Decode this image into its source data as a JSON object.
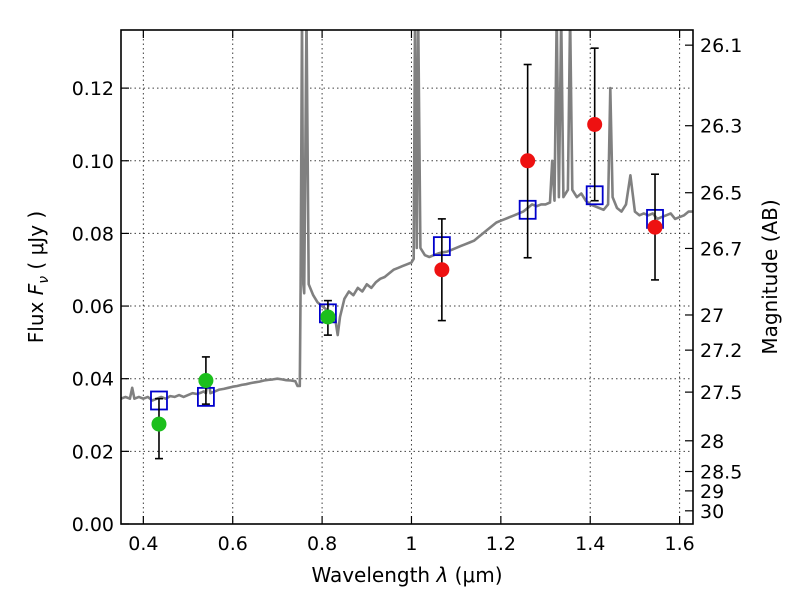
{
  "chart_data": {
    "type": "scatter",
    "xlabel": "Wavelength",
    "xlabel_symbol": "λ",
    "xlabel_unit": "μm",
    "ylabel": "Flux",
    "ylabel_symbol": "F",
    "ylabel_subscript": "ν",
    "ylabel_unit": "μJy",
    "ylabel_right": "Magnitude (AB)",
    "xlim": [
      0.35,
      1.63
    ],
    "ylim": [
      0.0,
      0.136
    ],
    "grid": true,
    "x_ticks": [
      {
        "value": 0.4,
        "label": "0.4"
      },
      {
        "value": 0.6,
        "label": "0.6"
      },
      {
        "value": 0.8,
        "label": "0.8"
      },
      {
        "value": 1.0,
        "label": "1"
      },
      {
        "value": 1.2,
        "label": "1.2"
      },
      {
        "value": 1.4,
        "label": "1.4"
      },
      {
        "value": 1.6,
        "label": "1.6"
      }
    ],
    "y_ticks": [
      {
        "value": 0.0,
        "label": "0.00"
      },
      {
        "value": 0.02,
        "label": "0.02"
      },
      {
        "value": 0.04,
        "label": "0.04"
      },
      {
        "value": 0.06,
        "label": "0.06"
      },
      {
        "value": 0.08,
        "label": "0.08"
      },
      {
        "value": 0.1,
        "label": "0.10"
      },
      {
        "value": 0.12,
        "label": "0.12"
      }
    ],
    "magnitude_ticks": [
      {
        "mag": 26.1,
        "label": "26.1"
      },
      {
        "mag": 26.3,
        "label": "26.3"
      },
      {
        "mag": 26.5,
        "label": "26.5"
      },
      {
        "mag": 26.7,
        "label": "26.7"
      },
      {
        "mag": 27.0,
        "label": "27"
      },
      {
        "mag": 27.2,
        "label": "27.2"
      },
      {
        "mag": 27.5,
        "label": "27.5"
      },
      {
        "mag": 28.0,
        "label": "28"
      },
      {
        "mag": 28.5,
        "label": "28.5"
      },
      {
        "mag": 29.0,
        "label": "29"
      },
      {
        "mag": 30.0,
        "label": "30"
      }
    ],
    "colors": {
      "spectrum": "#808080",
      "model_boxes": "#0000cc",
      "observed_green": "#1cbf1c",
      "observed_red": "#ee1111",
      "error_bars": "#000000"
    },
    "spectrum": [
      [
        0.35,
        0.0345
      ],
      [
        0.36,
        0.035
      ],
      [
        0.37,
        0.0345
      ],
      [
        0.375,
        0.0375
      ],
      [
        0.38,
        0.0345
      ],
      [
        0.39,
        0.035
      ],
      [
        0.4,
        0.0345
      ],
      [
        0.41,
        0.035
      ],
      [
        0.42,
        0.034
      ],
      [
        0.43,
        0.0345
      ],
      [
        0.44,
        0.035
      ],
      [
        0.45,
        0.0345
      ],
      [
        0.46,
        0.0352
      ],
      [
        0.47,
        0.035
      ],
      [
        0.48,
        0.0355
      ],
      [
        0.49,
        0.035
      ],
      [
        0.5,
        0.0355
      ],
      [
        0.51,
        0.036
      ],
      [
        0.52,
        0.0358
      ],
      [
        0.53,
        0.0362
      ],
      [
        0.535,
        0.0365
      ],
      [
        0.54,
        0.036
      ],
      [
        0.545,
        0.041
      ],
      [
        0.55,
        0.036
      ],
      [
        0.56,
        0.0365
      ],
      [
        0.57,
        0.037
      ],
      [
        0.58,
        0.0372
      ],
      [
        0.59,
        0.0375
      ],
      [
        0.6,
        0.0378
      ],
      [
        0.61,
        0.038
      ],
      [
        0.62,
        0.0383
      ],
      [
        0.63,
        0.0385
      ],
      [
        0.64,
        0.0388
      ],
      [
        0.65,
        0.039
      ],
      [
        0.66,
        0.0392
      ],
      [
        0.67,
        0.0395
      ],
      [
        0.68,
        0.0397
      ],
      [
        0.69,
        0.0398
      ],
      [
        0.7,
        0.04
      ],
      [
        0.71,
        0.0398
      ],
      [
        0.72,
        0.0396
      ],
      [
        0.73,
        0.0395
      ],
      [
        0.74,
        0.0393
      ],
      [
        0.745,
        0.038
      ],
      [
        0.75,
        0.038
      ],
      [
        0.752,
        0.065
      ],
      [
        0.755,
        0.14
      ],
      [
        0.758,
        0.066
      ],
      [
        0.76,
        0.0635
      ],
      [
        0.765,
        0.14
      ],
      [
        0.77,
        0.066
      ],
      [
        0.78,
        0.063
      ],
      [
        0.79,
        0.061
      ],
      [
        0.8,
        0.06
      ],
      [
        0.81,
        0.059
      ],
      [
        0.82,
        0.058
      ],
      [
        0.83,
        0.056
      ],
      [
        0.835,
        0.052
      ],
      [
        0.84,
        0.057
      ],
      [
        0.85,
        0.062
      ],
      [
        0.86,
        0.064
      ],
      [
        0.87,
        0.063
      ],
      [
        0.88,
        0.065
      ],
      [
        0.89,
        0.064
      ],
      [
        0.9,
        0.066
      ],
      [
        0.91,
        0.065
      ],
      [
        0.92,
        0.0665
      ],
      [
        0.93,
        0.0675
      ],
      [
        0.94,
        0.068
      ],
      [
        0.95,
        0.069
      ],
      [
        0.96,
        0.07
      ],
      [
        0.97,
        0.0705
      ],
      [
        0.98,
        0.071
      ],
      [
        0.99,
        0.0715
      ],
      [
        1.0,
        0.072
      ],
      [
        1.005,
        0.073
      ],
      [
        1.008,
        0.14
      ],
      [
        1.012,
        0.076
      ],
      [
        1.015,
        0.14
      ],
      [
        1.02,
        0.076
      ],
      [
        1.03,
        0.074
      ],
      [
        1.04,
        0.0735
      ],
      [
        1.05,
        0.074
      ],
      [
        1.06,
        0.0745
      ],
      [
        1.07,
        0.0748
      ],
      [
        1.08,
        0.075
      ],
      [
        1.09,
        0.0755
      ],
      [
        1.1,
        0.076
      ],
      [
        1.11,
        0.0765
      ],
      [
        1.12,
        0.077
      ],
      [
        1.13,
        0.0775
      ],
      [
        1.14,
        0.078
      ],
      [
        1.15,
        0.079
      ],
      [
        1.16,
        0.08
      ],
      [
        1.17,
        0.081
      ],
      [
        1.18,
        0.082
      ],
      [
        1.19,
        0.083
      ],
      [
        1.2,
        0.0835
      ],
      [
        1.21,
        0.084
      ],
      [
        1.22,
        0.0845
      ],
      [
        1.23,
        0.085
      ],
      [
        1.24,
        0.0855
      ],
      [
        1.25,
        0.086
      ],
      [
        1.26,
        0.087
      ],
      [
        1.27,
        0.088
      ],
      [
        1.28,
        0.0875
      ],
      [
        1.29,
        0.088
      ],
      [
        1.3,
        0.088
      ],
      [
        1.31,
        0.0885
      ],
      [
        1.315,
        0.1
      ],
      [
        1.32,
        0.089
      ],
      [
        1.325,
        0.14
      ],
      [
        1.33,
        0.09
      ],
      [
        1.335,
        0.14
      ],
      [
        1.34,
        0.09
      ],
      [
        1.35,
        0.092
      ],
      [
        1.355,
        0.14
      ],
      [
        1.36,
        0.092
      ],
      [
        1.37,
        0.09
      ],
      [
        1.38,
        0.091
      ],
      [
        1.39,
        0.089
      ],
      [
        1.4,
        0.088
      ],
      [
        1.41,
        0.0875
      ],
      [
        1.42,
        0.087
      ],
      [
        1.43,
        0.0865
      ],
      [
        1.44,
        0.088
      ],
      [
        1.445,
        0.12
      ],
      [
        1.45,
        0.09
      ],
      [
        1.46,
        0.087
      ],
      [
        1.47,
        0.086
      ],
      [
        1.48,
        0.088
      ],
      [
        1.49,
        0.096
      ],
      [
        1.5,
        0.086
      ],
      [
        1.51,
        0.085
      ],
      [
        1.52,
        0.0855
      ],
      [
        1.53,
        0.085
      ],
      [
        1.54,
        0.0855
      ],
      [
        1.55,
        0.084
      ],
      [
        1.56,
        0.0845
      ],
      [
        1.57,
        0.085
      ],
      [
        1.58,
        0.0855
      ],
      [
        1.59,
        0.084
      ],
      [
        1.6,
        0.0845
      ],
      [
        1.61,
        0.085
      ],
      [
        1.62,
        0.086
      ],
      [
        1.63,
        0.086
      ]
    ],
    "model_points": [
      {
        "x": 0.435,
        "y": 0.034
      },
      {
        "x": 0.54,
        "y": 0.035
      },
      {
        "x": 0.813,
        "y": 0.058
      },
      {
        "x": 1.068,
        "y": 0.0765
      },
      {
        "x": 1.26,
        "y": 0.0865
      },
      {
        "x": 1.41,
        "y": 0.0905
      },
      {
        "x": 1.545,
        "y": 0.084
      }
    ],
    "observed_points": [
      {
        "x": 0.435,
        "y": 0.0275,
        "err_lo": 0.018,
        "err_hi": 0.0345,
        "color": "green"
      },
      {
        "x": 0.54,
        "y": 0.0395,
        "err_lo": 0.033,
        "err_hi": 0.046,
        "color": "green"
      },
      {
        "x": 0.813,
        "y": 0.057,
        "err_lo": 0.052,
        "err_hi": 0.0615,
        "color": "green"
      },
      {
        "x": 1.068,
        "y": 0.07,
        "err_lo": 0.056,
        "err_hi": 0.084,
        "color": "red"
      },
      {
        "x": 1.26,
        "y": 0.1,
        "err_lo": 0.0733,
        "err_hi": 0.1265,
        "color": "red"
      },
      {
        "x": 1.41,
        "y": 0.11,
        "err_lo": 0.089,
        "err_hi": 0.131,
        "color": "red"
      },
      {
        "x": 1.545,
        "y": 0.0817,
        "err_lo": 0.0672,
        "err_hi": 0.0963,
        "color": "red"
      }
    ]
  }
}
